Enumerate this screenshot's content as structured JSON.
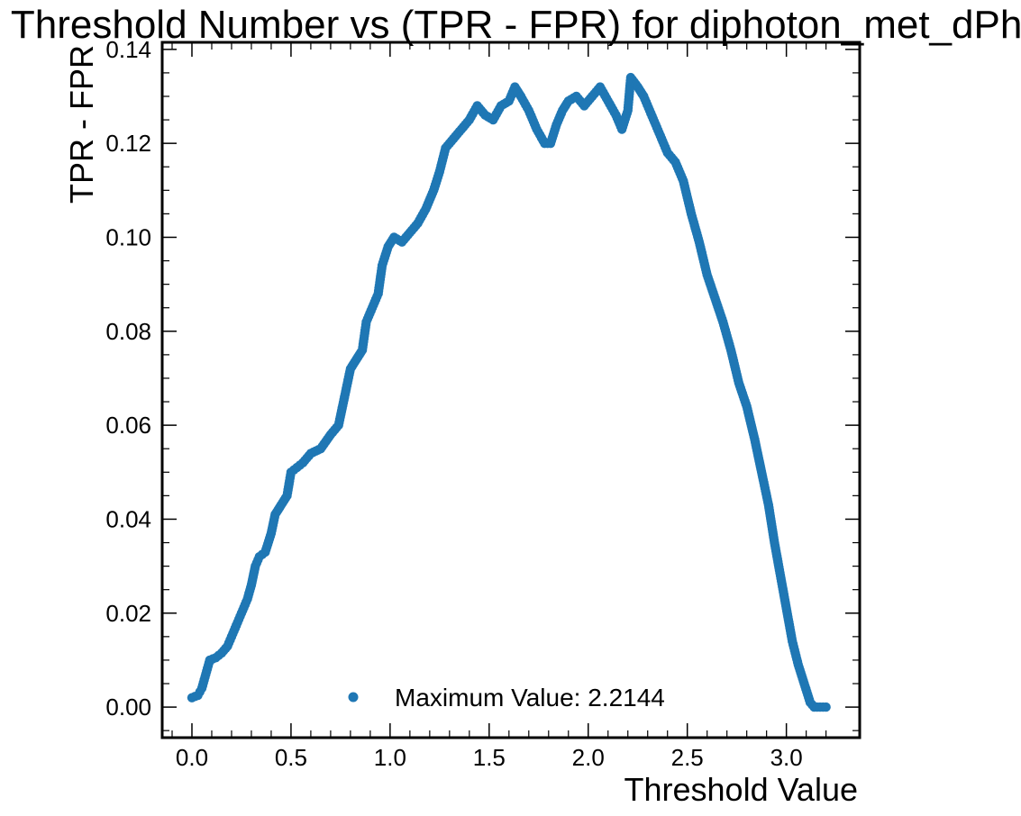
{
  "chart_data": {
    "type": "scatter",
    "title": "Threshold Number vs (TPR - FPR) for diphoton_met_dPhi",
    "xlabel": "Threshold Value",
    "ylabel": "TPR - FPR",
    "xlim": [
      -0.15,
      3.37
    ],
    "ylim": [
      -0.0065,
      0.1415
    ],
    "x_ticks": [
      "0.0",
      "0.5",
      "1.0",
      "1.5",
      "2.0",
      "2.5",
      "3.0"
    ],
    "y_ticks": [
      "0.00",
      "0.02",
      "0.04",
      "0.06",
      "0.08",
      "0.10",
      "0.12",
      "0.14"
    ],
    "grid": false,
    "legend_position": "bottom-center",
    "series": [
      {
        "name": "Maximum Value: 2.2144",
        "color": "#1f77b4",
        "marker": "circle",
        "points": [
          [
            0.0,
            0.002
          ],
          [
            0.03,
            0.0025
          ],
          [
            0.05,
            0.004
          ],
          [
            0.07,
            0.007
          ],
          [
            0.09,
            0.01
          ],
          [
            0.12,
            0.0105
          ],
          [
            0.15,
            0.0115
          ],
          [
            0.18,
            0.013
          ],
          [
            0.2,
            0.015
          ],
          [
            0.23,
            0.018
          ],
          [
            0.25,
            0.02
          ],
          [
            0.28,
            0.023
          ],
          [
            0.3,
            0.026
          ],
          [
            0.32,
            0.03
          ],
          [
            0.34,
            0.032
          ],
          [
            0.37,
            0.033
          ],
          [
            0.4,
            0.037
          ],
          [
            0.42,
            0.041
          ],
          [
            0.45,
            0.043
          ],
          [
            0.48,
            0.045
          ],
          [
            0.5,
            0.05
          ],
          [
            0.53,
            0.051
          ],
          [
            0.56,
            0.052
          ],
          [
            0.6,
            0.054
          ],
          [
            0.65,
            0.055
          ],
          [
            0.7,
            0.058
          ],
          [
            0.74,
            0.06
          ],
          [
            0.77,
            0.066
          ],
          [
            0.8,
            0.072
          ],
          [
            0.83,
            0.074
          ],
          [
            0.86,
            0.076
          ],
          [
            0.88,
            0.082
          ],
          [
            0.91,
            0.085
          ],
          [
            0.94,
            0.088
          ],
          [
            0.96,
            0.094
          ],
          [
            0.99,
            0.098
          ],
          [
            1.02,
            0.1
          ],
          [
            1.06,
            0.099
          ],
          [
            1.1,
            0.101
          ],
          [
            1.14,
            0.103
          ],
          [
            1.18,
            0.106
          ],
          [
            1.22,
            0.11
          ],
          [
            1.25,
            0.114
          ],
          [
            1.28,
            0.119
          ],
          [
            1.32,
            0.121
          ],
          [
            1.36,
            0.123
          ],
          [
            1.4,
            0.125
          ],
          [
            1.44,
            0.128
          ],
          [
            1.48,
            0.126
          ],
          [
            1.52,
            0.125
          ],
          [
            1.56,
            0.128
          ],
          [
            1.6,
            0.129
          ],
          [
            1.63,
            0.132
          ],
          [
            1.66,
            0.13
          ],
          [
            1.7,
            0.127
          ],
          [
            1.74,
            0.123
          ],
          [
            1.78,
            0.12
          ],
          [
            1.81,
            0.12
          ],
          [
            1.84,
            0.124
          ],
          [
            1.87,
            0.127
          ],
          [
            1.9,
            0.129
          ],
          [
            1.94,
            0.13
          ],
          [
            1.98,
            0.128
          ],
          [
            2.02,
            0.13
          ],
          [
            2.06,
            0.132
          ],
          [
            2.1,
            0.129
          ],
          [
            2.14,
            0.126
          ],
          [
            2.17,
            0.123
          ],
          [
            2.2,
            0.127
          ],
          [
            2.2144,
            0.134
          ],
          [
            2.25,
            0.132
          ],
          [
            2.28,
            0.13
          ],
          [
            2.31,
            0.127
          ],
          [
            2.34,
            0.124
          ],
          [
            2.37,
            0.121
          ],
          [
            2.4,
            0.118
          ],
          [
            2.44,
            0.116
          ],
          [
            2.48,
            0.112
          ],
          [
            2.52,
            0.105
          ],
          [
            2.56,
            0.099
          ],
          [
            2.6,
            0.092
          ],
          [
            2.64,
            0.087
          ],
          [
            2.68,
            0.082
          ],
          [
            2.72,
            0.076
          ],
          [
            2.76,
            0.069
          ],
          [
            2.8,
            0.064
          ],
          [
            2.84,
            0.057
          ],
          [
            2.88,
            0.049
          ],
          [
            2.91,
            0.043
          ],
          [
            2.94,
            0.035
          ],
          [
            2.97,
            0.028
          ],
          [
            3.0,
            0.021
          ],
          [
            3.03,
            0.014
          ],
          [
            3.06,
            0.009
          ],
          [
            3.09,
            0.005
          ],
          [
            3.12,
            0.001
          ],
          [
            3.14,
            0.0
          ],
          [
            3.17,
            0.0
          ],
          [
            3.2,
            0.0
          ]
        ]
      }
    ]
  }
}
